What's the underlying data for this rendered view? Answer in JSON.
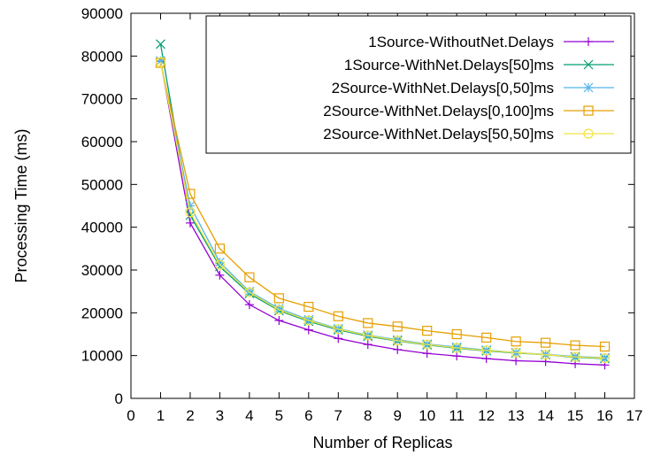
{
  "chart_data": {
    "type": "line",
    "title": "",
    "xlabel": "Number of Replicas",
    "ylabel": "Processing Time (ms)",
    "xlim": [
      0,
      17
    ],
    "ylim": [
      0,
      90000
    ],
    "xticks": [
      "0",
      "1",
      "2",
      "3",
      "4",
      "5",
      "6",
      "7",
      "8",
      "9",
      "10",
      "11",
      "12",
      "13",
      "14",
      "15",
      "16",
      "17"
    ],
    "yticks": [
      "0",
      "10000",
      "20000",
      "30000",
      "40000",
      "50000",
      "60000",
      "70000",
      "80000",
      "90000"
    ],
    "grid": false,
    "legend_position": "top-right",
    "x": [
      1,
      2,
      3,
      4,
      5,
      6,
      7,
      8,
      9,
      10,
      11,
      12,
      13,
      14,
      15,
      16
    ],
    "series": [
      {
        "name": "1Source-WithoutNet.Delays",
        "color": "#9400d3",
        "marker": "plus",
        "values": [
          78800,
          41000,
          28800,
          21900,
          18200,
          16000,
          14000,
          12600,
          11400,
          10500,
          9900,
          9300,
          8800,
          8600,
          8100,
          7800
        ]
      },
      {
        "name": "1Source-WithNet.Delays[50]ms",
        "color": "#009e73",
        "marker": "cross",
        "values": [
          82800,
          42800,
          30800,
          24500,
          20500,
          18000,
          16000,
          14500,
          13400,
          12500,
          11700,
          11100,
          10600,
          10200,
          9600,
          9300
        ]
      },
      {
        "name": "2Source-WithNet.Delays[0,50]ms",
        "color": "#56b4e9",
        "marker": "star",
        "values": [
          78900,
          45000,
          31800,
          25000,
          21000,
          18400,
          16300,
          14800,
          13700,
          12700,
          12000,
          11300,
          10700,
          10300,
          9800,
          9500
        ]
      },
      {
        "name": "2Source-WithNet.Delays[0,100]ms",
        "color": "#e69f00",
        "marker": "square",
        "values": [
          78400,
          47800,
          35000,
          28300,
          23400,
          21400,
          19200,
          17600,
          16800,
          15800,
          15000,
          14200,
          13300,
          13000,
          12400,
          12100
        ]
      },
      {
        "name": "2Source-WithNet.Delays[50,50]ms",
        "color": "#f0e442",
        "marker": "circle",
        "values": [
          78600,
          43500,
          31200,
          24800,
          20700,
          18200,
          16200,
          14700,
          13500,
          12600,
          11800,
          11200,
          10700,
          10200,
          9700,
          9400
        ]
      }
    ]
  }
}
